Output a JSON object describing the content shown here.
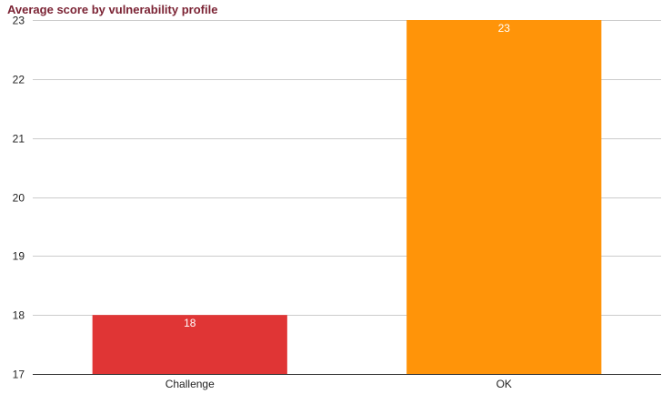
{
  "chart_data": {
    "type": "bar",
    "title": "Average score by vulnerability profile",
    "title_color": "#7b2334",
    "categories": [
      "Challenge",
      "OK"
    ],
    "values": [
      18,
      23
    ],
    "bar_colors": [
      "#e03535",
      "#ff9409"
    ],
    "data_labels": [
      "18",
      "23"
    ],
    "ylim": [
      17,
      23
    ],
    "yticks": [
      17,
      18,
      19,
      20,
      21,
      22,
      23
    ],
    "xlabel": "",
    "ylabel": "",
    "grid": true,
    "gridline_color": "#cccccc",
    "legend": "none"
  }
}
